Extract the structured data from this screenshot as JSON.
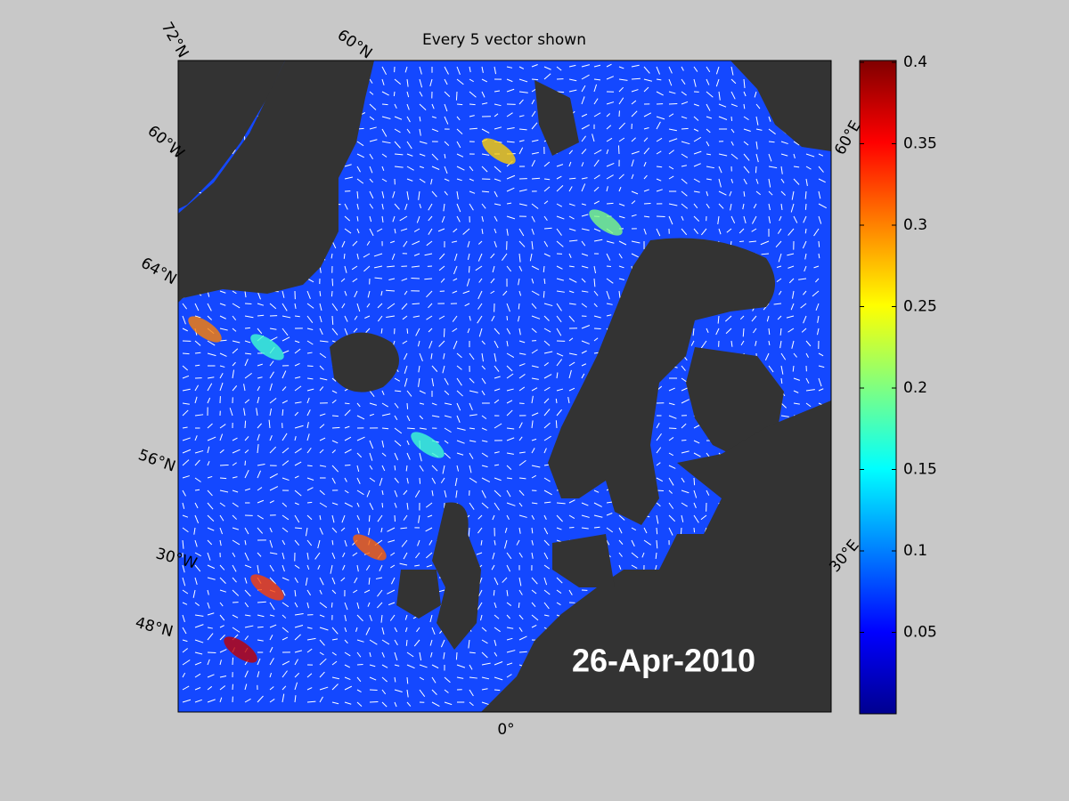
{
  "map": {
    "title": "Every 5 vector shown",
    "date": "26-Apr-2010",
    "graticule_labels": [
      "72°N",
      "60°N",
      "60°W",
      "64°N",
      "56°N",
      "30°W",
      "48°N",
      "0°",
      "60°E",
      "30°E"
    ]
  },
  "colorbar": {
    "colormap": "jet",
    "lim": [
      0,
      0.4
    ],
    "ticks": [
      0.05,
      0.1,
      0.15,
      0.2,
      0.25,
      0.3,
      0.35,
      0.4
    ]
  }
}
